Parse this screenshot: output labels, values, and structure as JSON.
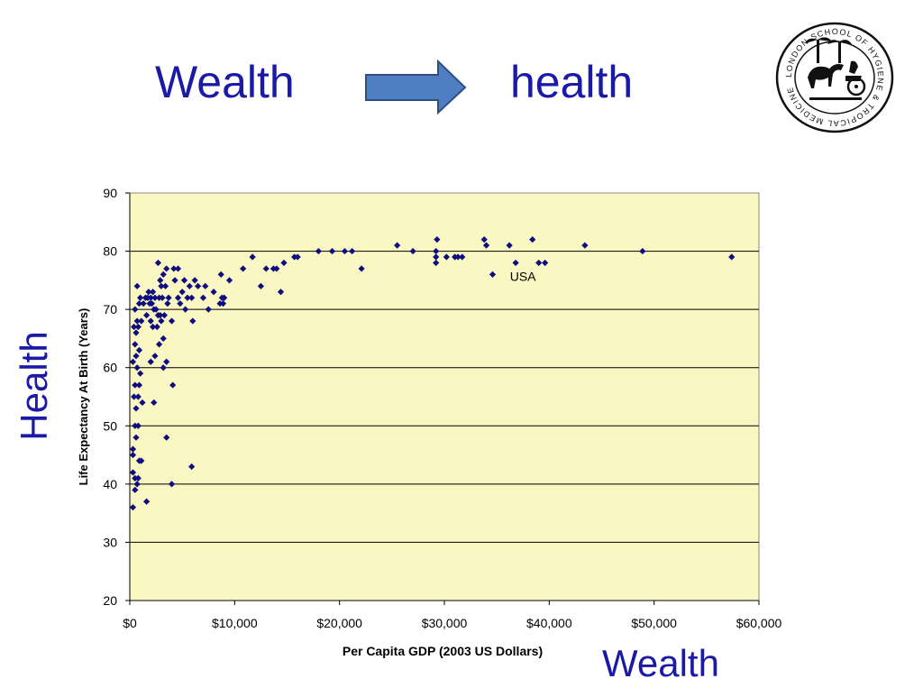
{
  "slide": {
    "title_left": "Wealth",
    "title_right": "health",
    "side_label_y": "Health",
    "side_label_x": "Wealth",
    "arrow_icon": "right-arrow-icon",
    "logo_icon": "school-seal-icon",
    "logo_text": "LONDON SCHOOL OF HYGIENE & TROPICAL MEDICINE",
    "colors": {
      "title": "#1a1aa6",
      "arrow_fill": "#4f7fc2",
      "arrow_stroke": "#2c4f86",
      "plot_bg": "#fbf7c2",
      "marker": "#0d0d80"
    }
  },
  "chart_data": {
    "type": "scatter",
    "title": "",
    "xlabel": "Per Capita GDP (2003 US Dollars)",
    "ylabel": "Life Expectancy At Birth (Years)",
    "xlim": [
      0,
      60000
    ],
    "ylim": [
      20,
      90
    ],
    "x_ticks": [
      0,
      10000,
      20000,
      30000,
      40000,
      50000,
      60000
    ],
    "x_tick_labels": [
      "$0",
      "$10,000",
      "$20,000",
      "$30,000",
      "$40,000",
      "$50,000",
      "$60,000"
    ],
    "y_ticks": [
      20,
      30,
      40,
      50,
      60,
      70,
      80,
      90
    ],
    "y_tick_labels": [
      "20",
      "30",
      "40",
      "50",
      "60",
      "70",
      "80",
      "90"
    ],
    "grid": "horizontal",
    "marker": "diamond",
    "annotations": [
      {
        "text": "USA",
        "x": 37800,
        "y": 76
      }
    ],
    "points": [
      [
        300,
        36
      ],
      [
        500,
        39
      ],
      [
        500,
        41
      ],
      [
        300,
        42
      ],
      [
        700,
        40
      ],
      [
        800,
        41
      ],
      [
        1100,
        44
      ],
      [
        900,
        44
      ],
      [
        1600,
        37
      ],
      [
        600,
        48
      ],
      [
        300,
        46
      ],
      [
        500,
        50
      ],
      [
        800,
        50
      ],
      [
        300,
        45
      ],
      [
        600,
        53
      ],
      [
        400,
        55
      ],
      [
        800,
        55
      ],
      [
        1200,
        54
      ],
      [
        500,
        57
      ],
      [
        900,
        57
      ],
      [
        700,
        60
      ],
      [
        1000,
        59
      ],
      [
        300,
        61
      ],
      [
        600,
        62
      ],
      [
        900,
        63
      ],
      [
        500,
        64
      ],
      [
        600,
        66
      ],
      [
        800,
        67
      ],
      [
        400,
        67
      ],
      [
        1100,
        68
      ],
      [
        700,
        68
      ],
      [
        500,
        70
      ],
      [
        900,
        71
      ],
      [
        1000,
        72
      ],
      [
        700,
        74
      ],
      [
        1300,
        71
      ],
      [
        1800,
        73
      ],
      [
        2000,
        72
      ],
      [
        2200,
        73
      ],
      [
        1700,
        72
      ],
      [
        2100,
        71
      ],
      [
        2500,
        70
      ],
      [
        2800,
        72
      ],
      [
        2400,
        72
      ],
      [
        1900,
        71
      ],
      [
        2300,
        70
      ],
      [
        2700,
        69
      ],
      [
        3100,
        72
      ],
      [
        1600,
        69
      ],
      [
        2000,
        68
      ],
      [
        2600,
        67
      ],
      [
        2200,
        67
      ],
      [
        3000,
        68
      ],
      [
        3300,
        69
      ],
      [
        1500,
        72
      ],
      [
        2900,
        75
      ],
      [
        3400,
        74
      ],
      [
        3200,
        76
      ],
      [
        3000,
        74
      ],
      [
        2700,
        78
      ],
      [
        3500,
        77
      ],
      [
        4200,
        77
      ],
      [
        4600,
        77
      ],
      [
        3700,
        72
      ],
      [
        4000,
        68
      ],
      [
        4600,
        72
      ],
      [
        5000,
        73
      ],
      [
        5500,
        72
      ],
      [
        5900,
        72
      ],
      [
        5300,
        70
      ],
      [
        4800,
        71
      ],
      [
        5700,
        74
      ],
      [
        6200,
        75
      ],
      [
        5200,
        75
      ],
      [
        4300,
        75
      ],
      [
        3600,
        71
      ],
      [
        3200,
        65
      ],
      [
        2900,
        69
      ],
      [
        2000,
        61
      ],
      [
        2400,
        62
      ],
      [
        2800,
        64
      ],
      [
        3200,
        60
      ],
      [
        3500,
        61
      ],
      [
        2300,
        54
      ],
      [
        4100,
        57
      ],
      [
        3500,
        48
      ],
      [
        5900,
        43
      ],
      [
        4000,
        40
      ],
      [
        7200,
        74
      ],
      [
        7500,
        70
      ],
      [
        8000,
        73
      ],
      [
        8600,
        71
      ],
      [
        8800,
        72
      ],
      [
        9000,
        72
      ],
      [
        8900,
        71
      ],
      [
        8700,
        76
      ],
      [
        9500,
        75
      ],
      [
        6000,
        68
      ],
      [
        6500,
        74
      ],
      [
        7000,
        72
      ],
      [
        10800,
        77
      ],
      [
        11700,
        79
      ],
      [
        12500,
        74
      ],
      [
        13000,
        77
      ],
      [
        13700,
        77
      ],
      [
        14000,
        77
      ],
      [
        14700,
        78
      ],
      [
        14400,
        73
      ],
      [
        15700,
        79
      ],
      [
        16000,
        79
      ],
      [
        18000,
        80
      ],
      [
        19300,
        80
      ],
      [
        20500,
        80
      ],
      [
        21200,
        80
      ],
      [
        22100,
        77
      ],
      [
        25500,
        81
      ],
      [
        27000,
        80
      ],
      [
        29200,
        78
      ],
      [
        29200,
        79
      ],
      [
        29300,
        82
      ],
      [
        29200,
        80
      ],
      [
        30200,
        79
      ],
      [
        31000,
        79
      ],
      [
        31300,
        79
      ],
      [
        31700,
        79
      ],
      [
        33800,
        82
      ],
      [
        34000,
        81
      ],
      [
        34600,
        76
      ],
      [
        36200,
        81
      ],
      [
        36800,
        78
      ],
      [
        38400,
        82
      ],
      [
        39000,
        78
      ],
      [
        39600,
        78
      ],
      [
        43400,
        81
      ],
      [
        48900,
        80
      ],
      [
        57400,
        79
      ]
    ]
  }
}
